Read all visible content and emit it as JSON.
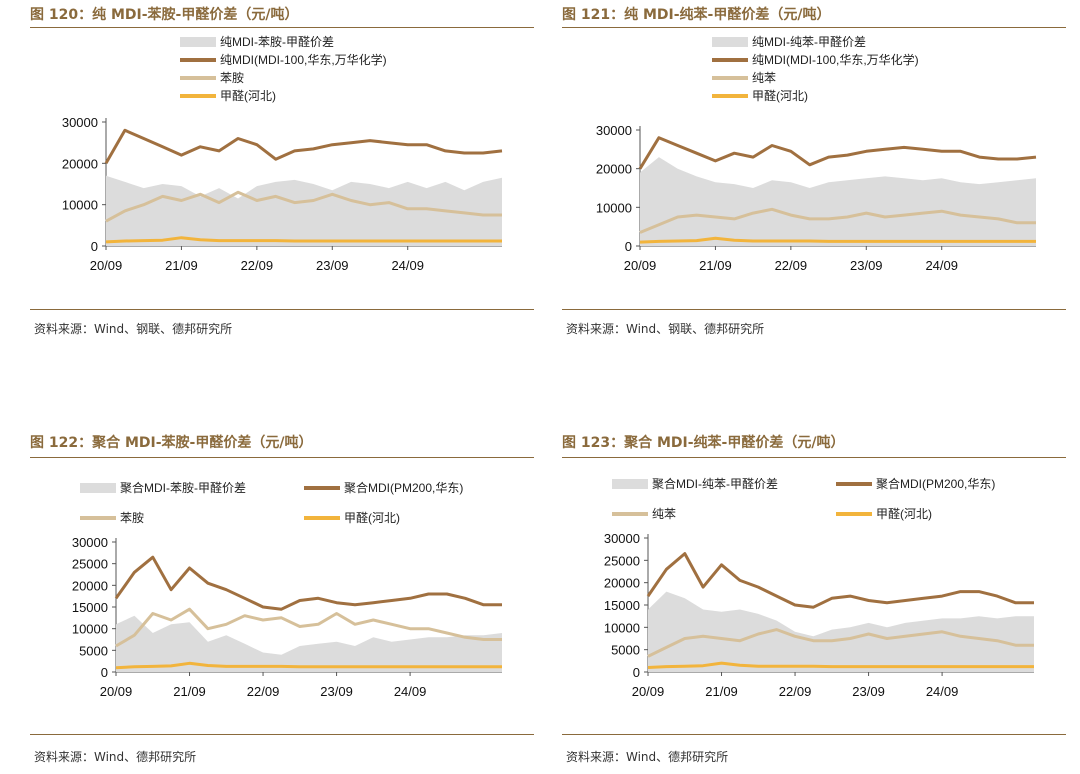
{
  "panels": [
    {
      "title": "图 120：纯 MDI-苯胺-甲醛价差（元/吨）",
      "source": "资料来源：Wind、钢联、德邦研究所",
      "legend_layout": "stacked",
      "legend": [
        {
          "label": "纯MDI-苯胺-甲醛价差",
          "color": "#dcdcdc",
          "kind": "area"
        },
        {
          "label": "纯MDI(MDI-100,华东,万华化学)",
          "color": "#a07040",
          "kind": "line"
        },
        {
          "label": "苯胺",
          "color": "#d6c09a",
          "kind": "line"
        },
        {
          "label": "甲醛(河北)",
          "color": "#f2b43c",
          "kind": "line"
        }
      ]
    },
    {
      "title": "图 121：纯 MDI-纯苯-甲醛价差（元/吨）",
      "source": "资料来源：Wind、钢联、德邦研究所",
      "legend_layout": "stacked",
      "legend": [
        {
          "label": "纯MDI-纯苯-甲醛价差",
          "color": "#dcdcdc",
          "kind": "area"
        },
        {
          "label": "纯MDI(MDI-100,华东,万华化学)",
          "color": "#a07040",
          "kind": "line"
        },
        {
          "label": "纯苯",
          "color": "#d6c09a",
          "kind": "line"
        },
        {
          "label": "甲醛(河北)",
          "color": "#f2b43c",
          "kind": "line"
        }
      ]
    },
    {
      "title": "图 122：聚合 MDI-苯胺-甲醛价差（元/吨）",
      "source": "资料来源：Wind、德邦研究所",
      "legend_layout": "grid",
      "legend": [
        {
          "label": "聚合MDI-苯胺-甲醛价差",
          "color": "#dcdcdc",
          "kind": "area"
        },
        {
          "label": "聚合MDI(PM200,华东)",
          "color": "#a07040",
          "kind": "line"
        },
        {
          "label": "苯胺",
          "color": "#d6c09a",
          "kind": "line"
        },
        {
          "label": "甲醛(河北)",
          "color": "#f2b43c",
          "kind": "line"
        }
      ]
    },
    {
      "title": "图 123：聚合 MDI-纯苯-甲醛价差（元/吨）",
      "source": "资料来源：Wind、德邦研究所",
      "legend_layout": "grid",
      "legend": [
        {
          "label": "聚合MDI-纯苯-甲醛价差",
          "color": "#dcdcdc",
          "kind": "area"
        },
        {
          "label": "聚合MDI(PM200,华东)",
          "color": "#a07040",
          "kind": "line"
        },
        {
          "label": "纯苯",
          "color": "#d6c09a",
          "kind": "line"
        },
        {
          "label": "甲醛(河北)",
          "color": "#f2b43c",
          "kind": "line"
        }
      ]
    }
  ],
  "chart_data": [
    {
      "type": "line",
      "title": "纯 MDI-苯胺-甲醛价差（元/吨）",
      "x": [
        0,
        3,
        6,
        9,
        12,
        15,
        18,
        21,
        24,
        27,
        30,
        33,
        36,
        39,
        42,
        45,
        48,
        51,
        54,
        57,
        60,
        63
      ],
      "x_tick_positions": [
        0,
        12,
        24,
        36,
        48
      ],
      "x_tick_labels": [
        "20/09",
        "21/09",
        "22/09",
        "23/09",
        "24/09"
      ],
      "xlim": [
        0,
        63
      ],
      "ylim": [
        0,
        30000
      ],
      "y_ticks": [
        0,
        10000,
        20000,
        30000
      ],
      "series": [
        {
          "name": "纯MDI-苯胺-甲醛价差",
          "style": "area",
          "values": [
            17000,
            15500,
            14000,
            15000,
            14500,
            12000,
            14000,
            11500,
            14500,
            15500,
            16000,
            15000,
            13500,
            15500,
            15000,
            14000,
            15500,
            14000,
            15500,
            13500,
            15500,
            16500
          ]
        },
        {
          "name": "纯MDI(MDI-100,华东,万华化学)",
          "style": "line",
          "values": [
            20000,
            28000,
            26000,
            24000,
            22000,
            24000,
            23000,
            26000,
            24500,
            21000,
            23000,
            23500,
            24500,
            25000,
            25500,
            25000,
            24500,
            24500,
            23000,
            22500,
            22500,
            23000
          ]
        },
        {
          "name": "苯胺",
          "style": "line",
          "values": [
            6000,
            8500,
            10000,
            12000,
            11000,
            12500,
            10500,
            13000,
            11000,
            12000,
            10500,
            11000,
            12500,
            11000,
            10000,
            10500,
            9000,
            9000,
            8500,
            8000,
            7500,
            7500
          ]
        },
        {
          "name": "甲醛(河北)",
          "style": "line",
          "values": [
            1000,
            1200,
            1300,
            1400,
            2000,
            1500,
            1300,
            1300,
            1300,
            1300,
            1200,
            1200,
            1200,
            1200,
            1200,
            1200,
            1200,
            1200,
            1200,
            1200,
            1200,
            1200
          ]
        }
      ]
    },
    {
      "type": "line",
      "title": "纯 MDI-纯苯-甲醛价差（元/吨）",
      "x": [
        0,
        3,
        6,
        9,
        12,
        15,
        18,
        21,
        24,
        27,
        30,
        33,
        36,
        39,
        42,
        45,
        48,
        51,
        54,
        57,
        60,
        63
      ],
      "x_tick_positions": [
        0,
        12,
        24,
        36,
        48
      ],
      "x_tick_labels": [
        "20/09",
        "21/09",
        "22/09",
        "23/09",
        "24/09"
      ],
      "xlim": [
        0,
        63
      ],
      "ylim": [
        0,
        30000
      ],
      "y_ticks": [
        0,
        10000,
        20000,
        30000
      ],
      "series": [
        {
          "name": "纯MDI-纯苯-甲醛价差",
          "style": "area",
          "values": [
            19000,
            23000,
            20000,
            18000,
            16500,
            16000,
            15000,
            17000,
            16500,
            15000,
            16500,
            17000,
            17500,
            18000,
            17500,
            17000,
            17500,
            16500,
            16000,
            16500,
            17000,
            17500
          ]
        },
        {
          "name": "纯MDI(MDI-100,华东,万华化学)",
          "style": "line",
          "values": [
            20000,
            28000,
            26000,
            24000,
            22000,
            24000,
            23000,
            26000,
            24500,
            21000,
            23000,
            23500,
            24500,
            25000,
            25500,
            25000,
            24500,
            24500,
            23000,
            22500,
            22500,
            23000
          ]
        },
        {
          "name": "纯苯",
          "style": "line",
          "values": [
            3500,
            5500,
            7500,
            8000,
            7500,
            7000,
            8500,
            9500,
            8000,
            7000,
            7000,
            7500,
            8500,
            7500,
            8000,
            8500,
            9000,
            8000,
            7500,
            7000,
            6000,
            6000
          ]
        },
        {
          "name": "甲醛(河北)",
          "style": "line",
          "values": [
            1000,
            1200,
            1300,
            1400,
            2000,
            1500,
            1300,
            1300,
            1300,
            1300,
            1200,
            1200,
            1200,
            1200,
            1200,
            1200,
            1200,
            1200,
            1200,
            1200,
            1200,
            1200
          ]
        }
      ]
    },
    {
      "type": "line",
      "title": "聚合 MDI-苯胺-甲醛价差（元/吨）",
      "x": [
        0,
        3,
        6,
        9,
        12,
        15,
        18,
        21,
        24,
        27,
        30,
        33,
        36,
        39,
        42,
        45,
        48,
        51,
        54,
        57,
        60,
        63
      ],
      "x_tick_positions": [
        0,
        12,
        24,
        36,
        48
      ],
      "x_tick_labels": [
        "20/09",
        "21/09",
        "22/09",
        "23/09",
        "24/09"
      ],
      "xlim": [
        0,
        63
      ],
      "ylim": [
        0,
        30000
      ],
      "y_ticks": [
        0,
        5000,
        10000,
        15000,
        20000,
        25000,
        30000
      ],
      "series": [
        {
          "name": "聚合MDI-苯胺-甲醛价差",
          "style": "area",
          "values": [
            11000,
            13000,
            9000,
            11000,
            11500,
            7000,
            8500,
            6500,
            4500,
            4000,
            6000,
            6500,
            7000,
            6000,
            8000,
            7000,
            7500,
            8000,
            8000,
            8500,
            8500,
            9000
          ]
        },
        {
          "name": "聚合MDI(PM200,华东)",
          "style": "line",
          "values": [
            17000,
            23000,
            26500,
            19000,
            24000,
            20500,
            19000,
            17000,
            15000,
            14500,
            16500,
            17000,
            16000,
            15500,
            16000,
            16500,
            17000,
            18000,
            18000,
            17000,
            15500,
            15500
          ]
        },
        {
          "name": "苯胺",
          "style": "line",
          "values": [
            6000,
            8500,
            13500,
            12000,
            14500,
            10000,
            11000,
            13000,
            12000,
            12500,
            10500,
            11000,
            13500,
            11000,
            12000,
            11000,
            10000,
            10000,
            9000,
            8000,
            7500,
            7500
          ]
        },
        {
          "name": "甲醛(河北)",
          "style": "line",
          "values": [
            1000,
            1200,
            1300,
            1400,
            2000,
            1500,
            1300,
            1300,
            1300,
            1300,
            1200,
            1200,
            1200,
            1200,
            1200,
            1200,
            1200,
            1200,
            1200,
            1200,
            1200,
            1200
          ]
        }
      ]
    },
    {
      "type": "line",
      "title": "聚合 MDI-纯苯-甲醛价差（元/吨）",
      "x": [
        0,
        3,
        6,
        9,
        12,
        15,
        18,
        21,
        24,
        27,
        30,
        33,
        36,
        39,
        42,
        45,
        48,
        51,
        54,
        57,
        60,
        63
      ],
      "x_tick_positions": [
        0,
        12,
        24,
        36,
        48
      ],
      "x_tick_labels": [
        "20/09",
        "21/09",
        "22/09",
        "23/09",
        "24/09"
      ],
      "xlim": [
        0,
        63
      ],
      "ylim": [
        0,
        30000
      ],
      "y_ticks": [
        0,
        5000,
        10000,
        15000,
        20000,
        25000,
        30000
      ],
      "series": [
        {
          "name": "聚合MDI-纯苯-甲醛价差",
          "style": "area",
          "values": [
            14000,
            18000,
            16500,
            14000,
            13500,
            14000,
            13000,
            11500,
            9000,
            8000,
            9500,
            10000,
            11000,
            10000,
            11000,
            11500,
            12000,
            12000,
            12500,
            12000,
            12500,
            12500
          ]
        },
        {
          "name": "聚合MDI(PM200,华东)",
          "style": "line",
          "values": [
            17000,
            23000,
            26500,
            19000,
            24000,
            20500,
            19000,
            17000,
            15000,
            14500,
            16500,
            17000,
            16000,
            15500,
            16000,
            16500,
            17000,
            18000,
            18000,
            17000,
            15500,
            15500
          ]
        },
        {
          "name": "纯苯",
          "style": "line",
          "values": [
            3500,
            5500,
            7500,
            8000,
            7500,
            7000,
            8500,
            9500,
            8000,
            7000,
            7000,
            7500,
            8500,
            7500,
            8000,
            8500,
            9000,
            8000,
            7500,
            7000,
            6000,
            6000
          ]
        },
        {
          "name": "甲醛(河北)",
          "style": "line",
          "values": [
            1000,
            1200,
            1300,
            1400,
            2000,
            1500,
            1300,
            1300,
            1300,
            1300,
            1200,
            1200,
            1200,
            1200,
            1200,
            1200,
            1200,
            1200,
            1200,
            1200,
            1200,
            1200
          ]
        }
      ]
    }
  ]
}
